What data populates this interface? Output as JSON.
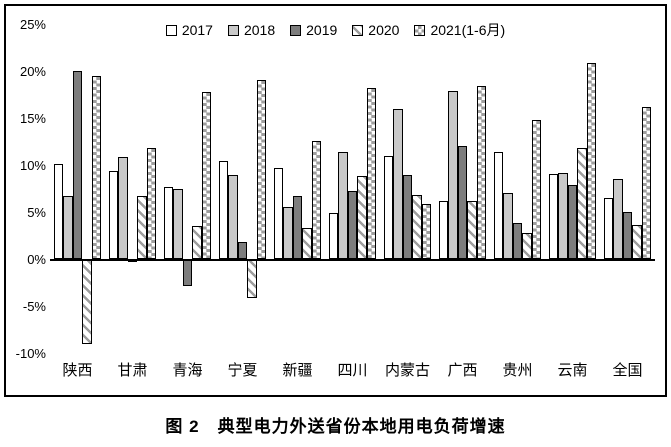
{
  "caption": "图 2　典型电力外送省份本地用电负荷增速",
  "colors": {
    "bar_border": "#000000",
    "series_light_gray": "#c9c9c9",
    "series_dark_gray": "#7d7d7d",
    "pattern_gray": "#9e9e9e",
    "axis_line": "#000000"
  },
  "chart_data": {
    "type": "bar",
    "title": "",
    "xlabel": "",
    "ylabel": "",
    "ylim": [
      -10,
      25
    ],
    "ytick_labels": [
      "25%",
      "20%",
      "15%",
      "10%",
      "5%",
      "0%",
      "-5%",
      "-10%"
    ],
    "ytick_values": [
      25,
      20,
      15,
      10,
      5,
      0,
      -5,
      -10
    ],
    "grid": false,
    "legend_position": "top",
    "categories": [
      "陕西",
      "甘肃",
      "青海",
      "宁夏",
      "新疆",
      "四川",
      "内蒙古",
      "广西",
      "贵州",
      "云南",
      "全国"
    ],
    "series": [
      {
        "name": "2017",
        "style": "plain",
        "values": [
          10.1,
          9.4,
          7.7,
          10.4,
          9.7,
          4.9,
          11.0,
          6.2,
          11.4,
          9.0,
          6.5
        ]
      },
      {
        "name": "2018",
        "style": "light",
        "values": [
          6.7,
          10.8,
          7.4,
          8.9,
          5.5,
          11.4,
          16.0,
          17.9,
          7.0,
          9.2,
          8.5
        ]
      },
      {
        "name": "2019",
        "style": "dark",
        "values": [
          20.0,
          -0.3,
          -2.9,
          1.8,
          6.7,
          7.2,
          8.9,
          12.0,
          3.8,
          7.9,
          5.0
        ]
      },
      {
        "name": "2020",
        "style": "stripe",
        "values": [
          -9.0,
          6.7,
          3.5,
          -4.2,
          3.3,
          8.8,
          6.8,
          6.2,
          2.8,
          11.8,
          3.6
        ]
      },
      {
        "name": "2021(1-6月)",
        "style": "checker",
        "values": [
          19.5,
          11.8,
          17.8,
          19.0,
          12.6,
          18.2,
          5.8,
          18.4,
          14.8,
          20.9,
          16.2
        ]
      }
    ]
  }
}
